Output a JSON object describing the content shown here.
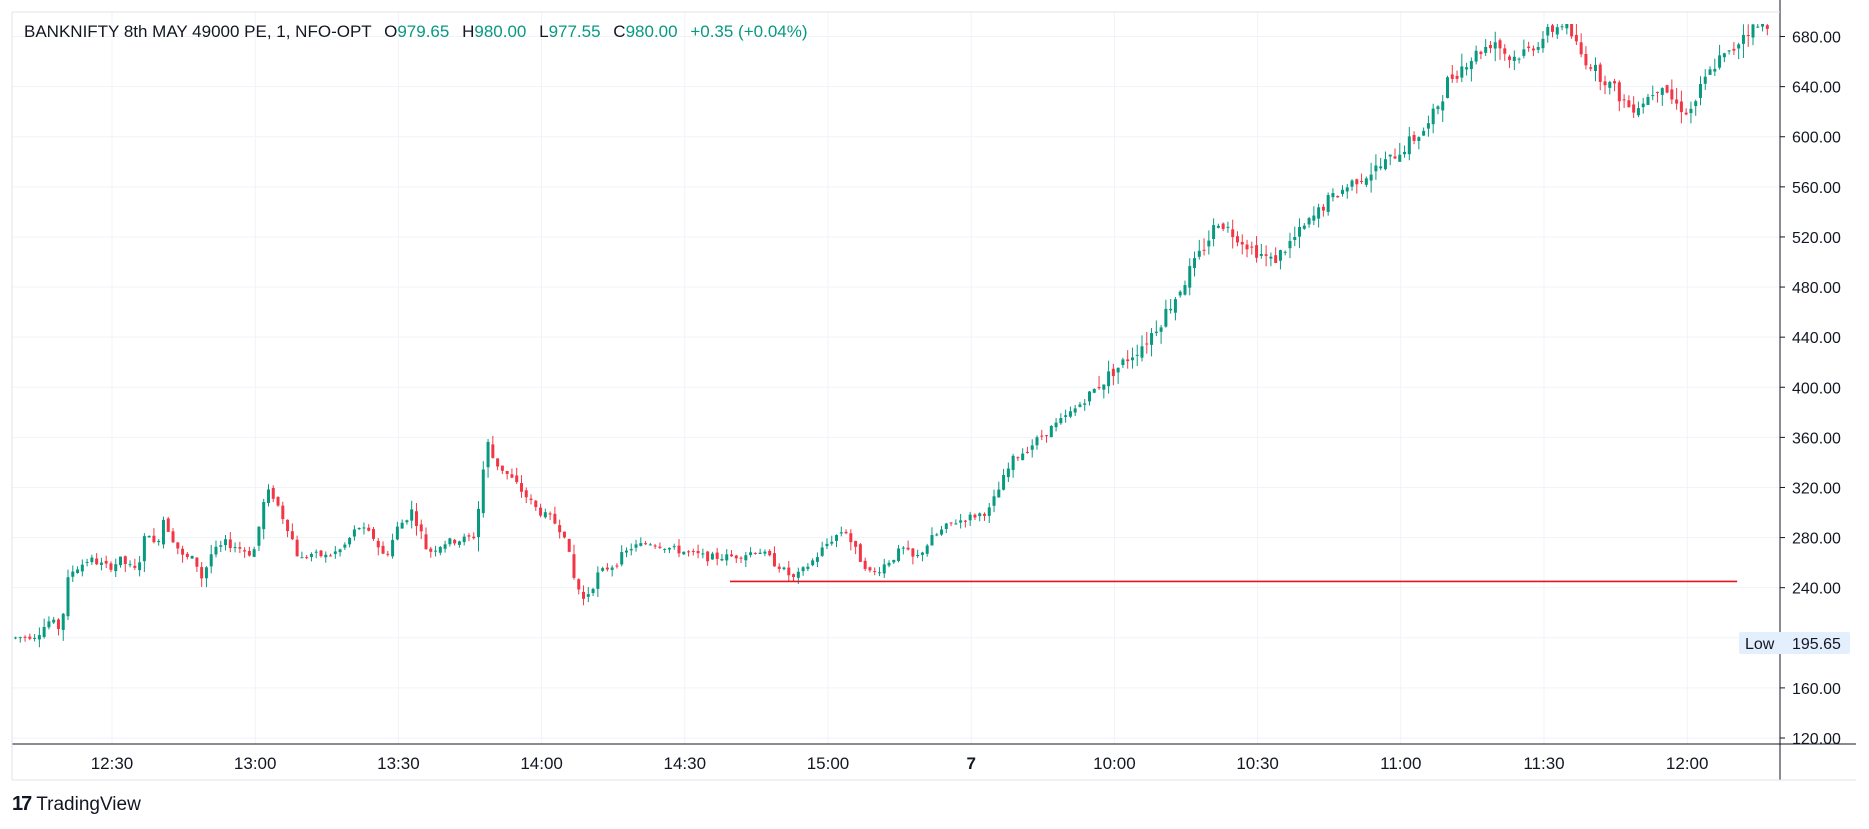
{
  "header": {
    "symbol": "BANKNIFTY 8th MAY 49000 PE, 1, NFO-OPT",
    "open_label": "O",
    "open": "979.65",
    "high_label": "H",
    "high": "980.00",
    "low_label": "L",
    "low": "977.55",
    "close_label": "C",
    "close": "980.00",
    "change": "+0.35 (+0.04%)"
  },
  "branding": {
    "mark": "17",
    "name": "TradingView"
  },
  "low_marker": {
    "label": "Low",
    "value": "195.65",
    "price": 195.65
  },
  "colors": {
    "up": "#089981",
    "down": "#f23645",
    "level_line": "#e5151d",
    "grid": "#f0f3fa",
    "axis": "#131722",
    "low_badge": "#e3effd"
  },
  "chart_data": {
    "type": "candlestick",
    "ylim": [
      120,
      690
    ],
    "y_ticks": [
      120,
      160,
      200,
      240,
      280,
      320,
      360,
      400,
      440,
      480,
      520,
      560,
      600,
      640,
      680
    ],
    "y_tick_labels": [
      "120.00",
      "160.00",
      "",
      "240.00",
      "280.00",
      "320.00",
      "360.00",
      "400.00",
      "440.00",
      "480.00",
      "520.00",
      "560.00",
      "600.00",
      "640.00",
      "680.00"
    ],
    "x_ticks": [
      {
        "label": "12:30",
        "bold": false
      },
      {
        "label": "13:00",
        "bold": false
      },
      {
        "label": "13:30",
        "bold": false
      },
      {
        "label": "14:00",
        "bold": false
      },
      {
        "label": "14:30",
        "bold": false
      },
      {
        "label": "15:00",
        "bold": false
      },
      {
        "label": "7",
        "bold": true
      },
      {
        "label": "10:00",
        "bold": false
      },
      {
        "label": "10:30",
        "bold": false
      },
      {
        "label": "11:00",
        "bold": false
      },
      {
        "label": "11:30",
        "bold": false
      },
      {
        "label": "12:00",
        "bold": false
      }
    ],
    "horizontal_line": {
      "price": 245,
      "from_bar": 150,
      "to_bar": 361
    },
    "bars_per_tick": 30,
    "total_slots": 368,
    "segments": [
      [
        0,
        200
      ],
      [
        10,
        202
      ],
      [
        18,
        214
      ],
      [
        23,
        207
      ],
      [
        28,
        252
      ],
      [
        38,
        263
      ],
      [
        48,
        256
      ],
      [
        54,
        262
      ],
      [
        62,
        253
      ],
      [
        68,
        287
      ],
      [
        72,
        270
      ],
      [
        76,
        296
      ],
      [
        80,
        282
      ],
      [
        86,
        264
      ],
      [
        92,
        263
      ],
      [
        96,
        247
      ],
      [
        100,
        266
      ],
      [
        108,
        276
      ],
      [
        116,
        271
      ],
      [
        122,
        266
      ],
      [
        128,
        310
      ],
      [
        131,
        318
      ],
      [
        134,
        308
      ],
      [
        140,
        288
      ],
      [
        146,
        262
      ],
      [
        152,
        267
      ],
      [
        160,
        265
      ],
      [
        168,
        271
      ],
      [
        176,
        289
      ],
      [
        184,
        280
      ],
      [
        190,
        263
      ],
      [
        196,
        287
      ],
      [
        204,
        302
      ],
      [
        208,
        285
      ],
      [
        212,
        268
      ],
      [
        220,
        276
      ],
      [
        228,
        278
      ],
      [
        236,
        281
      ],
      [
        240,
        330
      ],
      [
        242,
        357
      ],
      [
        246,
        341
      ],
      [
        256,
        325
      ],
      [
        268,
        302
      ],
      [
        276,
        294
      ],
      [
        282,
        283
      ],
      [
        286,
        250
      ],
      [
        292,
        230
      ],
      [
        300,
        252
      ],
      [
        308,
        259
      ],
      [
        316,
        272
      ],
      [
        326,
        276
      ],
      [
        340,
        270
      ],
      [
        356,
        264
      ],
      [
        370,
        265
      ],
      [
        382,
        270
      ],
      [
        390,
        260
      ],
      [
        400,
        247
      ],
      [
        410,
        262
      ],
      [
        418,
        277
      ],
      [
        426,
        287
      ],
      [
        432,
        268
      ],
      [
        440,
        250
      ],
      [
        450,
        263
      ],
      [
        456,
        271
      ],
      [
        462,
        262
      ],
      [
        470,
        278
      ],
      [
        480,
        291
      ],
      [
        500,
        301
      ],
      [
        512,
        341
      ],
      [
        528,
        362
      ],
      [
        544,
        382
      ],
      [
        558,
        404
      ],
      [
        570,
        421
      ],
      [
        582,
        439
      ],
      [
        592,
        462
      ],
      [
        604,
        494
      ],
      [
        618,
        533
      ],
      [
        634,
        512
      ],
      [
        646,
        500
      ],
      [
        660,
        524
      ],
      [
        674,
        548
      ],
      [
        688,
        565
      ],
      [
        702,
        577
      ],
      [
        716,
        595
      ],
      [
        726,
        609
      ],
      [
        736,
        644
      ],
      [
        746,
        661
      ],
      [
        760,
        677
      ],
      [
        768,
        662
      ],
      [
        778,
        670
      ],
      [
        788,
        684
      ],
      [
        796,
        692
      ],
      [
        804,
        666
      ],
      [
        812,
        653
      ],
      [
        822,
        637
      ],
      [
        830,
        622
      ],
      [
        838,
        631
      ],
      [
        846,
        644
      ],
      [
        852,
        627
      ],
      [
        860,
        619
      ],
      [
        868,
        645
      ],
      [
        874,
        660
      ],
      [
        882,
        668
      ],
      [
        888,
        684
      ],
      [
        900,
        690
      ]
    ]
  }
}
